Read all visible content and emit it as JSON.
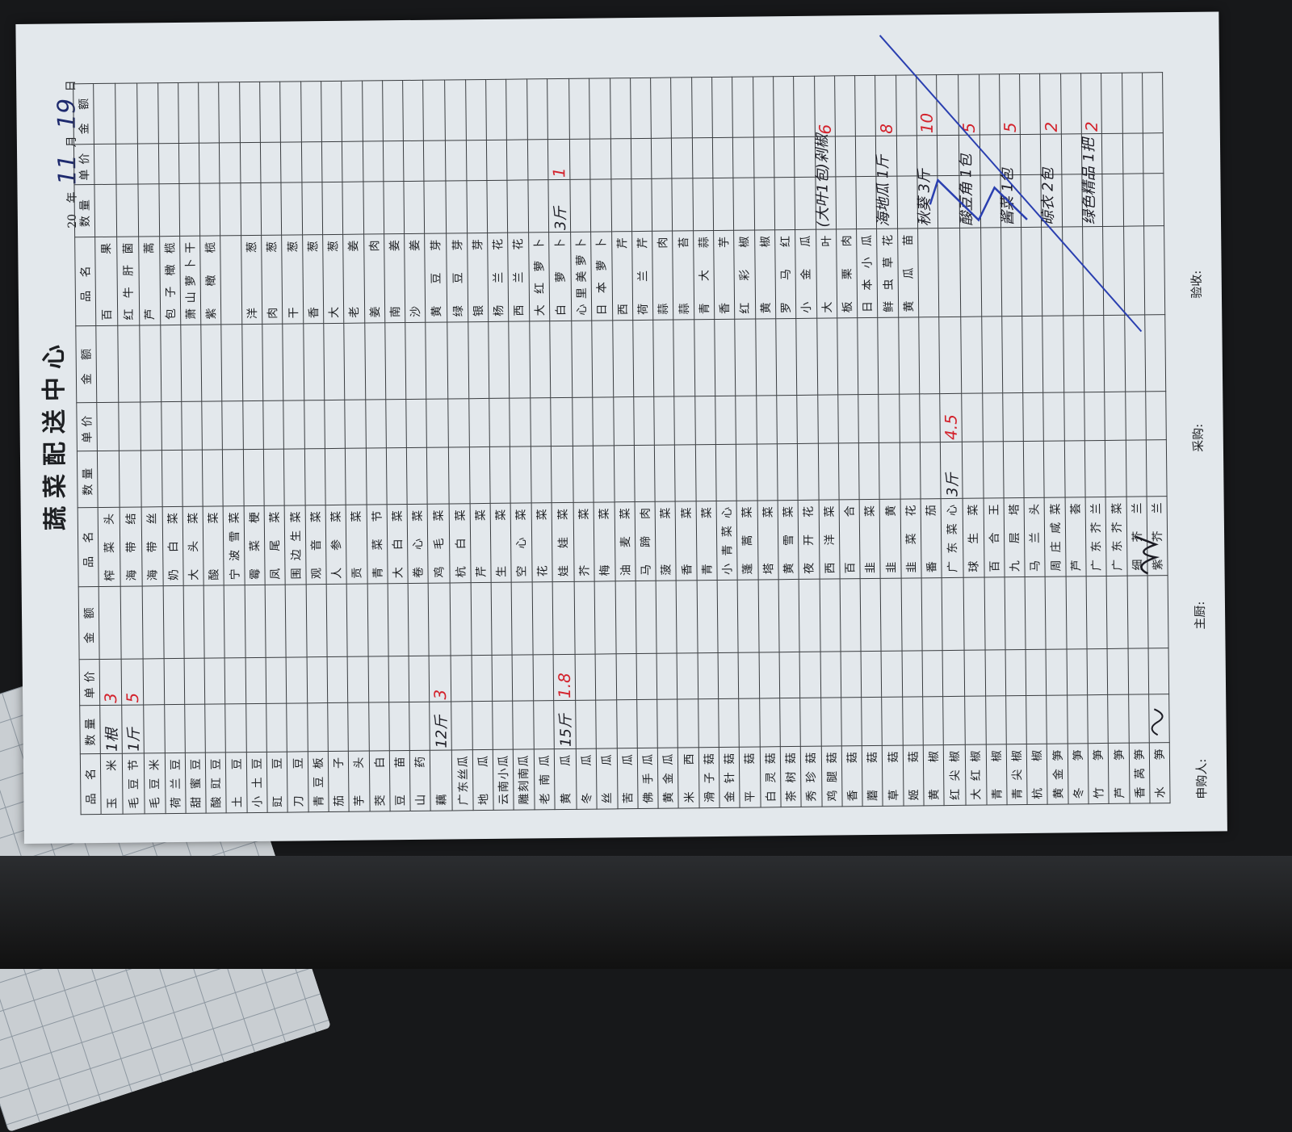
{
  "title": "蔬菜配送中心",
  "date": {
    "prefix": "20",
    "year_label": "年",
    "month": "11",
    "month_label": "月",
    "day": "19",
    "day_label": "日"
  },
  "columns": [
    "品 名",
    "数量",
    "单价",
    "金 额"
  ],
  "groups": [
    {
      "names": [
        "玉 米",
        "毛豆节",
        "毛豆米",
        "荷兰豆",
        "甜蜜豆",
        "酸豇豆",
        "土 豆",
        "小土豆",
        "豇 豆",
        "刀 豆",
        "青豆板",
        "茄 子",
        "芋 头",
        "茭 白",
        "豆 苗",
        "山 药",
        "藕",
        "广东丝瓜",
        "地 瓜",
        "云南小瓜",
        "雕刻南瓜",
        "老南瓜",
        "黄 瓜",
        "冬 瓜",
        "丝 瓜",
        "苦 瓜",
        "佛手瓜",
        "黄金瓜",
        "米 西",
        "滑子菇",
        "金针菇",
        "平 菇",
        "白灵菇",
        "茶树菇",
        "秀珍菇",
        "鸡腿菇",
        "香 菇",
        "蘑 菇",
        "草 菇",
        "姬 菇",
        "黄 椒",
        "红尖椒",
        "大红椒",
        "青 椒",
        "青尖椒",
        "杭 椒",
        "黄金笋",
        "冬 笋",
        "竹 笋",
        "芦 笋",
        "香莴笋",
        "水 笋"
      ]
    },
    {
      "names": [
        "榨菜头",
        "海带结",
        "海带丝",
        "奶白菜",
        "大头菜",
        "酸 菜",
        "宁波雪菜",
        "霉菜梗",
        "凤尾菜",
        "围边生菜",
        "观音菜",
        "人参菜",
        "贡 菜",
        "青菜节",
        "大白菜",
        "卷心菜",
        "鸡毛菜",
        "杭白菜",
        "芹 菜",
        "生 菜",
        "空心菜",
        "花 菜",
        "娃娃菜",
        "芥 菜",
        "梅 菜",
        "油麦菜",
        "马蹄肉",
        "菠 菜",
        "香 菜",
        "青 菜",
        "小青菜心",
        "蓬蒿菜",
        "塔 菜",
        "黄雪菜",
        "夜开花",
        "西洋菜",
        "百 合",
        "韭 菜",
        "韭 黄",
        "韭菜花",
        "番 茄",
        "广东菜心",
        "球生菜",
        "百合王",
        "九层塔",
        "马兰头",
        "周庄咸菜",
        "芦 荟",
        "广东芥兰",
        "广东芥菜",
        "细芥兰",
        "紫芥兰"
      ]
    },
    {
      "names": [
        "百 果",
        "红牛肝菌",
        "芦 蒿",
        "包子橄榄",
        "萧山萝卜干",
        "紫橄榄",
        "",
        "洋 葱",
        "肉 葱",
        "干 葱",
        "香 葱",
        "大 葱",
        "老 姜",
        "姜 肉",
        "南 姜",
        "沙 姜",
        "黄豆芽",
        "绿豆芽",
        "银 芽",
        "杨兰花",
        "西兰花",
        "大红萝卜",
        "白萝卜",
        "心里美萝卜",
        "日本萝卜",
        "西 芹",
        "荷兰芹",
        "蒜 肉",
        "蒜 苔",
        "青大蒜",
        "香 芋",
        "红彩椒",
        "黄 椒",
        "罗马红",
        "小金瓜",
        "大 叶",
        "板栗肉",
        "日本小瓜",
        "鲜虫草花",
        "黄瓜苗",
        "",
        "",
        "",
        "",
        "",
        "",
        "",
        "",
        "",
        "",
        "",
        ""
      ]
    }
  ],
  "entries": [
    {
      "group": 0,
      "item": "玉 米",
      "qty": "1根",
      "price": "3"
    },
    {
      "group": 0,
      "item": "毛豆节",
      "qty": "1斤",
      "price": "5"
    },
    {
      "group": 0,
      "item": "藕",
      "qty": "12斤",
      "price": "3"
    },
    {
      "group": 0,
      "item": "黄 瓜",
      "qty": "15斤",
      "price": "1.8"
    },
    {
      "group": 1,
      "item": "广东菜心",
      "qty": "3斤",
      "price": "4.5"
    },
    {
      "group": 2,
      "item": "白萝卜",
      "qty": "3斤",
      "price": "1"
    }
  ],
  "handwritten_extra": [
    {
      "text": "(大叶1包)剁椒",
      "amount": "6"
    },
    {
      "text": "海地瓜 1斤",
      "amount": "8"
    },
    {
      "text": "秋葵 3斤",
      "amount": "10"
    },
    {
      "text": "酸豆角 1包",
      "amount": "5"
    },
    {
      "text": "酱菜 1包",
      "amount": "5"
    },
    {
      "text": "晾衣 2包",
      "amount": "2"
    },
    {
      "text": "绿色精品 1把",
      "amount": "2"
    }
  ],
  "footer": {
    "requester": "申购人:",
    "chef": "主厨:",
    "purchaser": "采购:",
    "receiver": "验收:"
  },
  "colors": {
    "paper": "#e3e8ec",
    "ink_red": "#d3212b",
    "ink_blue": "#2a3fb0",
    "ink_black": "#1c1c24"
  }
}
